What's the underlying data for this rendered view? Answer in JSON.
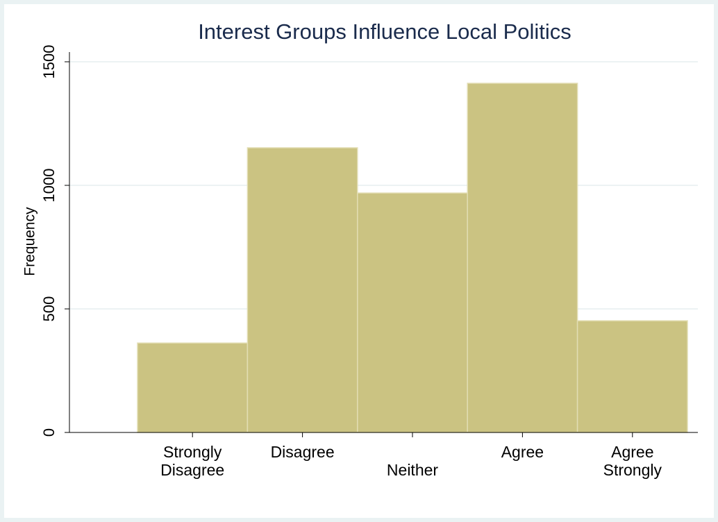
{
  "chart_data": {
    "type": "bar",
    "title": "Interest Groups Influence Local Politics",
    "y_label": "Frequency",
    "categories": [
      "Strongly Disagree",
      "Disagree",
      "Neither",
      "Agree",
      "Agree Strongly"
    ],
    "values": [
      362,
      1152,
      969,
      1413,
      452
    ],
    "color": "#cbc382",
    "ylim": [
      0,
      1500
    ],
    "yticks": [
      0,
      500,
      1000,
      1500
    ],
    "grid": true
  }
}
